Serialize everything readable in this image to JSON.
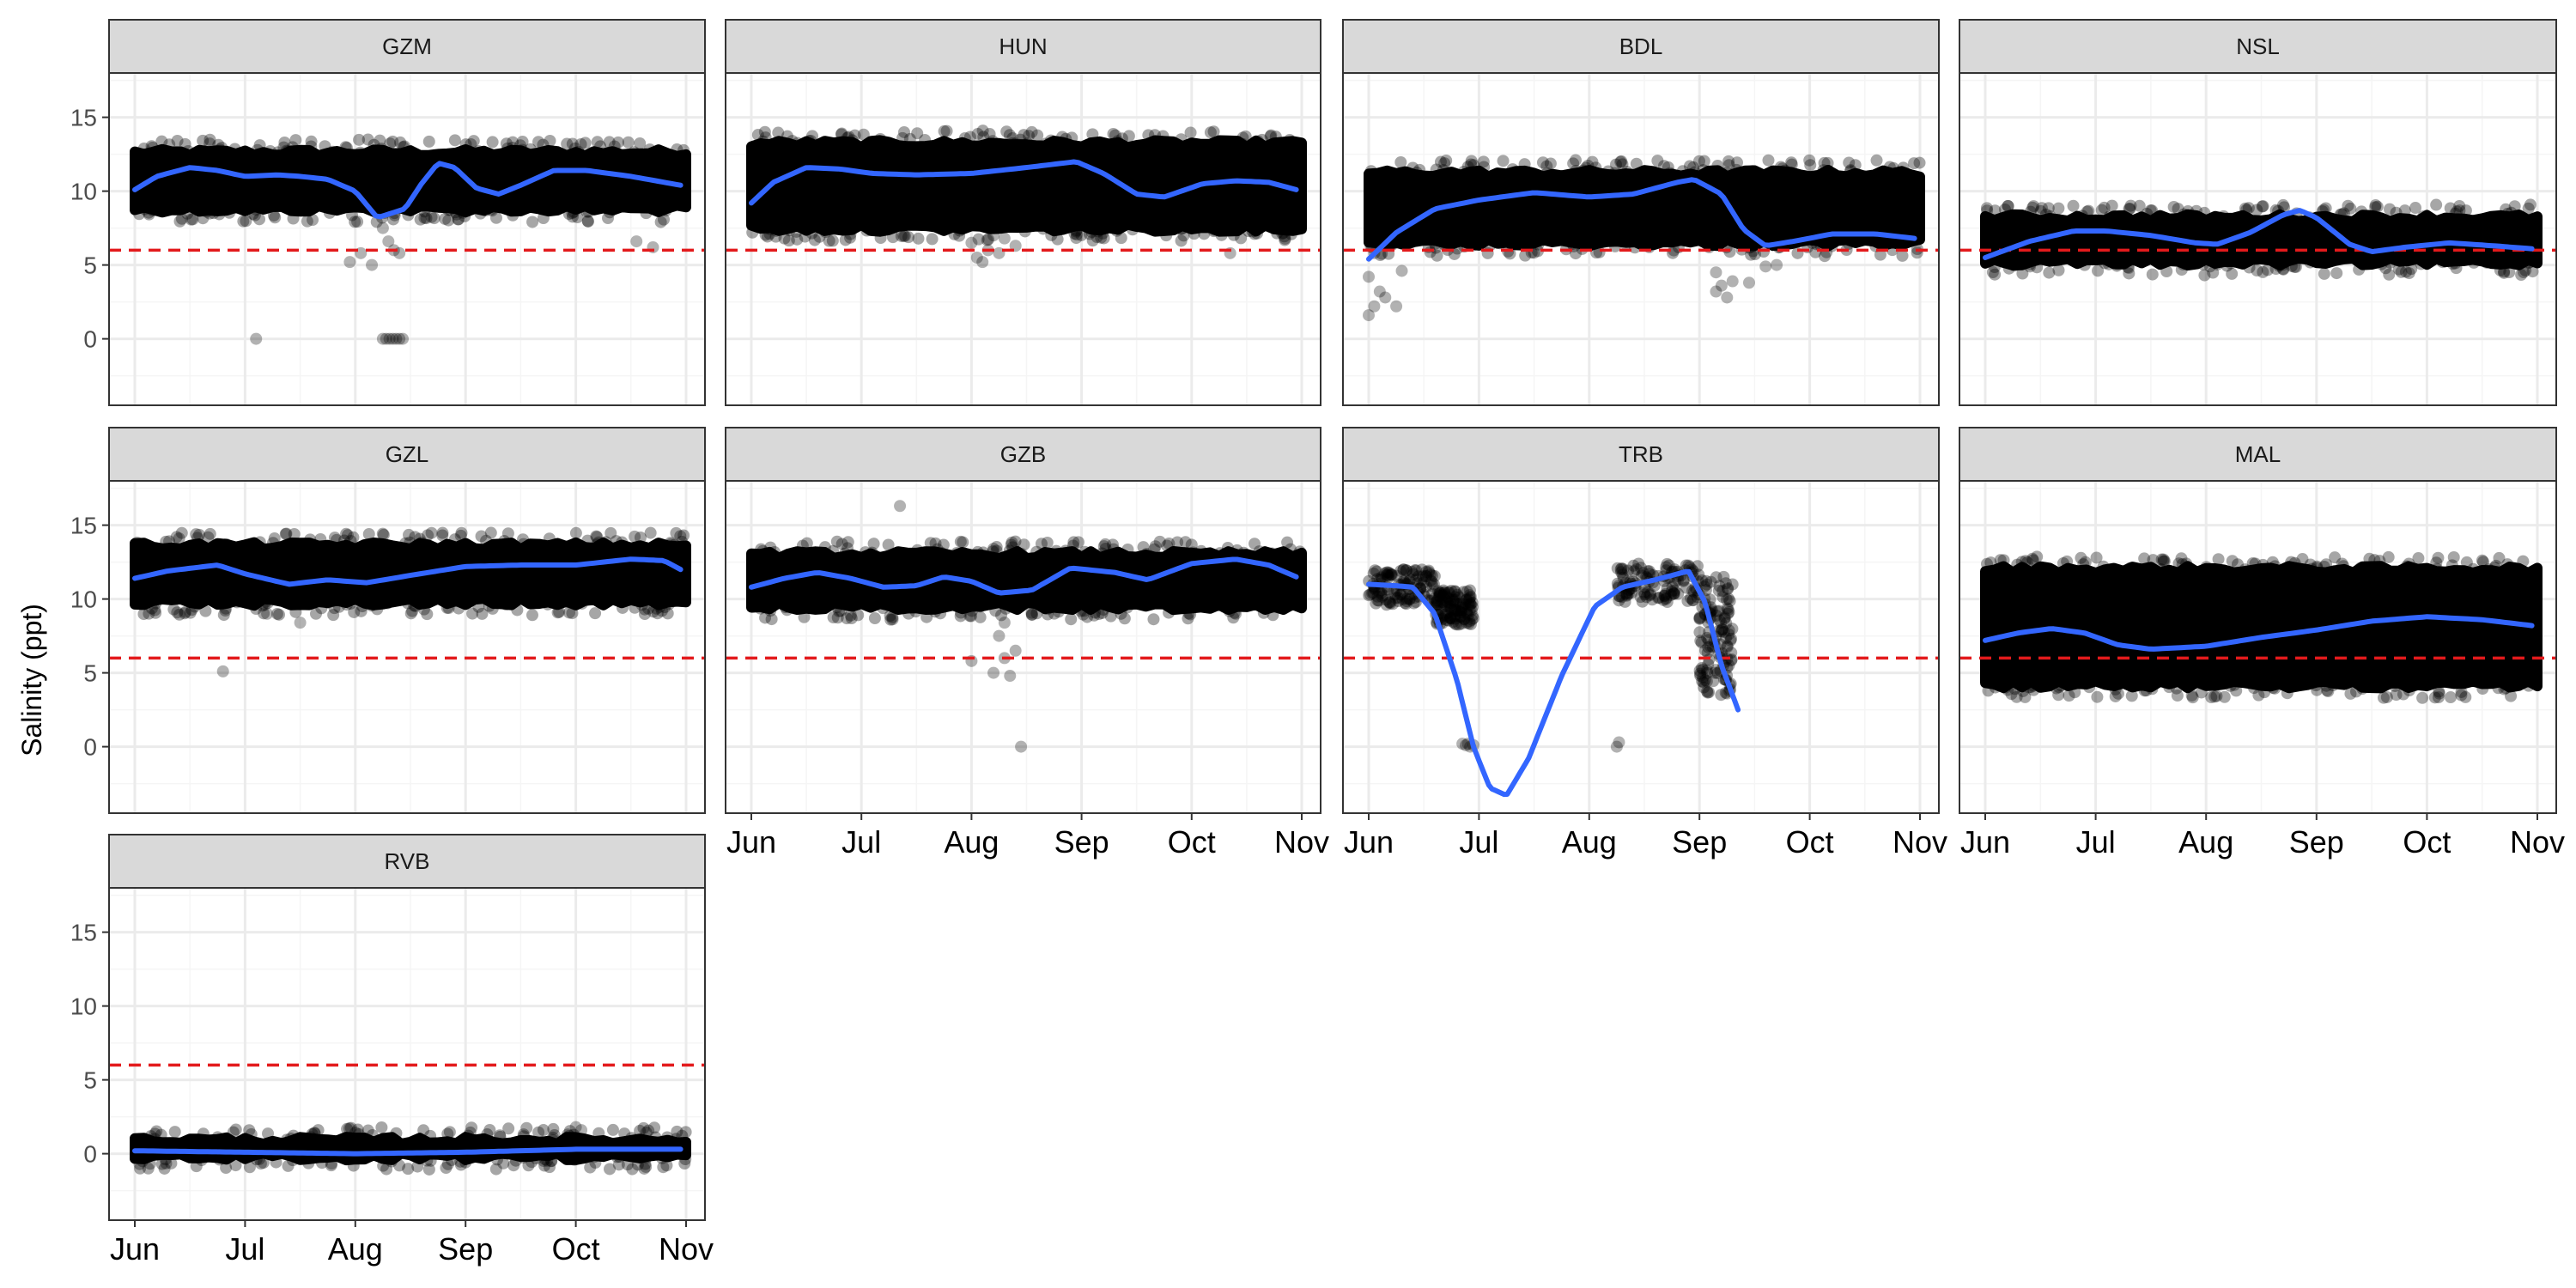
{
  "chart_data": {
    "type": "scatter",
    "ylabel": "Salinity (ppt)",
    "xlabel": "",
    "ylim": [
      -4.5,
      18
    ],
    "y_ticks": [
      0,
      5,
      10,
      15
    ],
    "x_month_ticks": [
      "Jun",
      "Jul",
      "Aug",
      "Sep",
      "Oct",
      "Nov"
    ],
    "threshold": 6,
    "colors": {
      "points": "#000000",
      "smooth": "#3366ff",
      "threshold": "#e31a1c",
      "strip_fill": "#d9d9d9",
      "panel_border": "#333333",
      "grid_major": "#ebebeb",
      "grid_minor": "#f5f5f5"
    },
    "panels": [
      {
        "name": "GZM",
        "range": [
          0,
          5
        ],
        "band_lo": 8.8,
        "band_hi": 12.6,
        "smooth": [
          [
            0,
            10.1
          ],
          [
            0.2,
            11.0
          ],
          [
            0.5,
            11.6
          ],
          [
            0.75,
            11.4
          ],
          [
            1,
            11.0
          ],
          [
            1.3,
            11.1
          ],
          [
            1.5,
            11.0
          ],
          [
            1.75,
            10.8
          ],
          [
            2.0,
            10.0
          ],
          [
            2.2,
            8.2
          ],
          [
            2.45,
            8.8
          ],
          [
            2.6,
            10.5
          ],
          [
            2.75,
            11.9
          ],
          [
            2.9,
            11.6
          ],
          [
            3.1,
            10.2
          ],
          [
            3.3,
            9.8
          ],
          [
            3.5,
            10.4
          ],
          [
            3.8,
            11.4
          ],
          [
            4.1,
            11.4
          ],
          [
            4.5,
            11.0
          ],
          [
            4.95,
            10.4
          ]
        ],
        "outliers": [
          [
            1.1,
            0
          ],
          [
            2.25,
            0
          ],
          [
            2.28,
            0
          ],
          [
            2.31,
            0
          ],
          [
            2.34,
            0
          ],
          [
            2.37,
            0
          ],
          [
            2.4,
            0
          ],
          [
            2.43,
            0
          ],
          [
            1.95,
            5.2
          ],
          [
            2.05,
            5.8
          ],
          [
            2.15,
            5.0
          ],
          [
            2.25,
            7.5
          ],
          [
            2.3,
            6.6
          ],
          [
            2.35,
            6.0
          ],
          [
            2.4,
            5.8
          ],
          [
            4.55,
            6.6
          ],
          [
            4.7,
            6.2
          ]
        ]
      },
      {
        "name": "HUN",
        "range": [
          0,
          5
        ],
        "band_lo": 7.5,
        "band_hi": 13.2,
        "smooth": [
          [
            0,
            9.2
          ],
          [
            0.2,
            10.6
          ],
          [
            0.5,
            11.6
          ],
          [
            0.8,
            11.5
          ],
          [
            1.1,
            11.2
          ],
          [
            1.5,
            11.1
          ],
          [
            2,
            11.2
          ],
          [
            2.5,
            11.6
          ],
          [
            2.95,
            12.0
          ],
          [
            3.2,
            11.2
          ],
          [
            3.5,
            9.8
          ],
          [
            3.75,
            9.6
          ],
          [
            4.1,
            10.5
          ],
          [
            4.4,
            10.7
          ],
          [
            4.7,
            10.6
          ],
          [
            4.95,
            10.1
          ]
        ],
        "outliers": [
          [
            1.15,
            8.2
          ],
          [
            2.0,
            6.5
          ],
          [
            2.05,
            5.5
          ],
          [
            2.1,
            5.2
          ],
          [
            2.15,
            6.0
          ],
          [
            2.25,
            5.8
          ],
          [
            2.3,
            6.8
          ],
          [
            2.45,
            8.0
          ],
          [
            2.4,
            6.3
          ],
          [
            4.35,
            5.8
          ],
          [
            2.2,
            7.0
          ]
        ]
      },
      {
        "name": "BDL",
        "range": [
          0,
          5
        ],
        "band_lo": 6.5,
        "band_hi": 11.2,
        "smooth": [
          [
            0,
            5.4
          ],
          [
            0.25,
            7.2
          ],
          [
            0.6,
            8.8
          ],
          [
            1,
            9.4
          ],
          [
            1.5,
            9.9
          ],
          [
            2,
            9.6
          ],
          [
            2.4,
            9.8
          ],
          [
            2.8,
            10.6
          ],
          [
            2.95,
            10.8
          ],
          [
            3.2,
            9.8
          ],
          [
            3.4,
            7.4
          ],
          [
            3.6,
            6.3
          ],
          [
            3.85,
            6.6
          ],
          [
            4.2,
            7.1
          ],
          [
            4.6,
            7.1
          ],
          [
            4.95,
            6.8
          ]
        ],
        "outliers": [
          [
            0.0,
            1.6
          ],
          [
            0.05,
            2.2
          ],
          [
            0.1,
            3.2
          ],
          [
            0.15,
            2.8
          ],
          [
            0.0,
            4.2
          ],
          [
            0.25,
            2.2
          ],
          [
            0.3,
            4.6
          ],
          [
            0.05,
            5.8
          ],
          [
            3.15,
            4.5
          ],
          [
            3.2,
            3.6
          ],
          [
            3.25,
            2.8
          ],
          [
            3.3,
            3.9
          ],
          [
            3.45,
            3.8
          ],
          [
            3.6,
            4.9
          ],
          [
            3.7,
            5.0
          ],
          [
            3.15,
            3.2
          ]
        ]
      },
      {
        "name": "NSL",
        "range": [
          0,
          5
        ],
        "band_lo": 5.2,
        "band_hi": 8.2,
        "smooth": [
          [
            0,
            5.5
          ],
          [
            0.4,
            6.6
          ],
          [
            0.8,
            7.3
          ],
          [
            1.1,
            7.3
          ],
          [
            1.5,
            7.0
          ],
          [
            1.9,
            6.5
          ],
          [
            2.1,
            6.4
          ],
          [
            2.4,
            7.2
          ],
          [
            2.7,
            8.4
          ],
          [
            2.85,
            8.7
          ],
          [
            3.0,
            8.2
          ],
          [
            3.3,
            6.4
          ],
          [
            3.5,
            5.9
          ],
          [
            3.8,
            6.2
          ],
          [
            4.2,
            6.5
          ],
          [
            4.6,
            6.3
          ],
          [
            4.95,
            6.1
          ]
        ],
        "outliers": [
          [
            0.9,
            6.2
          ],
          [
            1.3,
            4.8
          ],
          [
            2.2,
            6.3
          ]
        ]
      },
      {
        "name": "GZL",
        "range": [
          0,
          5
        ],
        "band_lo": 9.8,
        "band_hi": 13.6,
        "smooth": [
          [
            0,
            11.4
          ],
          [
            0.3,
            11.9
          ],
          [
            0.75,
            12.3
          ],
          [
            1.0,
            11.7
          ],
          [
            1.4,
            11.0
          ],
          [
            1.75,
            11.3
          ],
          [
            2.1,
            11.1
          ],
          [
            2.5,
            11.6
          ],
          [
            3,
            12.2
          ],
          [
            3.5,
            12.3
          ],
          [
            4,
            12.3
          ],
          [
            4.5,
            12.7
          ],
          [
            4.8,
            12.6
          ],
          [
            4.95,
            12.0
          ]
        ],
        "outliers": [
          [
            0.8,
            5.1
          ],
          [
            1.5,
            8.4
          ],
          [
            4.6,
            9.6
          ],
          [
            1.2,
            9.0
          ]
        ]
      },
      {
        "name": "GZB",
        "range": [
          0,
          5
        ],
        "band_lo": 9.5,
        "band_hi": 13.0,
        "smooth": [
          [
            0,
            10.8
          ],
          [
            0.3,
            11.4
          ],
          [
            0.6,
            11.8
          ],
          [
            0.9,
            11.4
          ],
          [
            1.2,
            10.8
          ],
          [
            1.5,
            10.9
          ],
          [
            1.75,
            11.5
          ],
          [
            2.0,
            11.2
          ],
          [
            2.25,
            10.4
          ],
          [
            2.55,
            10.6
          ],
          [
            2.9,
            12.1
          ],
          [
            3.3,
            11.8
          ],
          [
            3.6,
            11.3
          ],
          [
            4,
            12.4
          ],
          [
            4.4,
            12.7
          ],
          [
            4.7,
            12.3
          ],
          [
            4.95,
            11.5
          ]
        ],
        "outliers": [
          [
            2.45,
            0
          ],
          [
            2.0,
            5.8
          ],
          [
            2.2,
            5.0
          ],
          [
            2.3,
            6.0
          ],
          [
            2.35,
            4.8
          ],
          [
            2.4,
            6.5
          ],
          [
            2.25,
            7.5
          ],
          [
            2.3,
            8.4
          ],
          [
            4.4,
            9.0
          ],
          [
            1.35,
            16.3
          ]
        ]
      },
      {
        "name": "TRB",
        "range": [
          0,
          3.4
        ],
        "band_lo": 9.6,
        "band_hi": 11.6,
        "smooth": [
          [
            0,
            11.0
          ],
          [
            0.25,
            10.9
          ],
          [
            0.4,
            10.8
          ],
          [
            0.6,
            9.0
          ],
          [
            0.8,
            4.5
          ],
          [
            0.95,
            0.0
          ],
          [
            1.1,
            -2.8
          ],
          [
            1.25,
            -3.3
          ],
          [
            1.45,
            -0.8
          ],
          [
            1.75,
            4.8
          ],
          [
            2.05,
            9.5
          ],
          [
            2.3,
            10.8
          ],
          [
            2.6,
            11.3
          ],
          [
            2.9,
            11.9
          ],
          [
            3.05,
            9.8
          ],
          [
            3.2,
            5.5
          ],
          [
            3.35,
            2.5
          ]
        ],
        "clusters": [
          [
            0.0,
            0.6,
            9.6,
            12.0
          ],
          [
            0.6,
            0.95,
            8.2,
            10.6
          ],
          [
            2.25,
            3.0,
            9.8,
            12.4
          ],
          [
            3.0,
            3.3,
            3.4,
            11.5
          ]
        ],
        "outliers": [
          [
            0.85,
            0.2
          ],
          [
            0.88,
            0.1
          ],
          [
            0.9,
            0.2
          ],
          [
            0.92,
            0.0
          ],
          [
            0.95,
            0.1
          ],
          [
            2.25,
            0.0
          ],
          [
            2.27,
            0.3
          ],
          [
            3.1,
            6.8
          ],
          [
            3.15,
            5.2
          ],
          [
            3.25,
            3.6
          ]
        ]
      },
      {
        "name": "MAL",
        "range": [
          0,
          5
        ],
        "band_lo": 4.2,
        "band_hi": 12.0,
        "smooth": [
          [
            0,
            7.2
          ],
          [
            0.3,
            7.7
          ],
          [
            0.6,
            8.0
          ],
          [
            0.9,
            7.7
          ],
          [
            1.2,
            6.9
          ],
          [
            1.5,
            6.6
          ],
          [
            2,
            6.8
          ],
          [
            2.5,
            7.4
          ],
          [
            3,
            7.9
          ],
          [
            3.5,
            8.5
          ],
          [
            4,
            8.8
          ],
          [
            4.5,
            8.6
          ],
          [
            4.95,
            8.2
          ]
        ],
        "outliers": []
      },
      {
        "name": "RVB",
        "range": [
          0,
          5
        ],
        "band_lo": -0.2,
        "band_hi": 0.9,
        "smooth": [
          [
            0,
            0.2
          ],
          [
            1,
            0.1
          ],
          [
            2,
            0.0
          ],
          [
            3,
            0.1
          ],
          [
            4,
            0.3
          ],
          [
            4.95,
            0.3
          ]
        ],
        "outliers": [
          [
            4.0,
            1.8
          ],
          [
            4.05,
            1.6
          ]
        ]
      }
    ]
  }
}
